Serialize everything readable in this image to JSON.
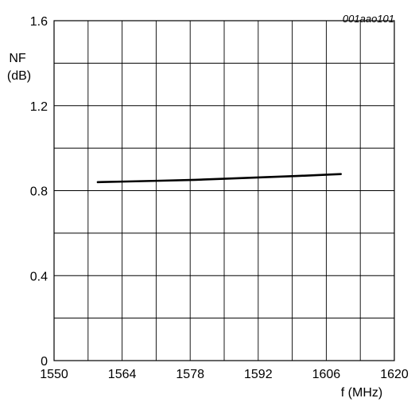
{
  "figure_id": "001aao101",
  "chart_data": {
    "type": "line",
    "xlabel": "f (MHz)",
    "ylabel_line1": "NF",
    "ylabel_line2": "(dB)",
    "xlim": [
      1550,
      1620
    ],
    "ylim": [
      0,
      1.6
    ],
    "x_ticks": [
      1550,
      1564,
      1578,
      1592,
      1606,
      1620
    ],
    "x_tick_labels": [
      "1550",
      "1564",
      "1578",
      "1592",
      "1606",
      "1620"
    ],
    "y_ticks": [
      0,
      0.4,
      0.8,
      1.2,
      1.6
    ],
    "y_tick_labels": [
      "0",
      "0.4",
      "0.8",
      "1.2",
      "1.6"
    ],
    "x_minor_step": 7,
    "y_minor_step": 0.2,
    "grid": true,
    "series": [
      {
        "color": "#000000",
        "x": [
          1559,
          1565,
          1572,
          1579,
          1586,
          1593,
          1600,
          1607,
          1609
        ],
        "y": [
          0.84,
          0.843,
          0.847,
          0.851,
          0.857,
          0.863,
          0.869,
          0.876,
          0.878
        ]
      }
    ]
  }
}
